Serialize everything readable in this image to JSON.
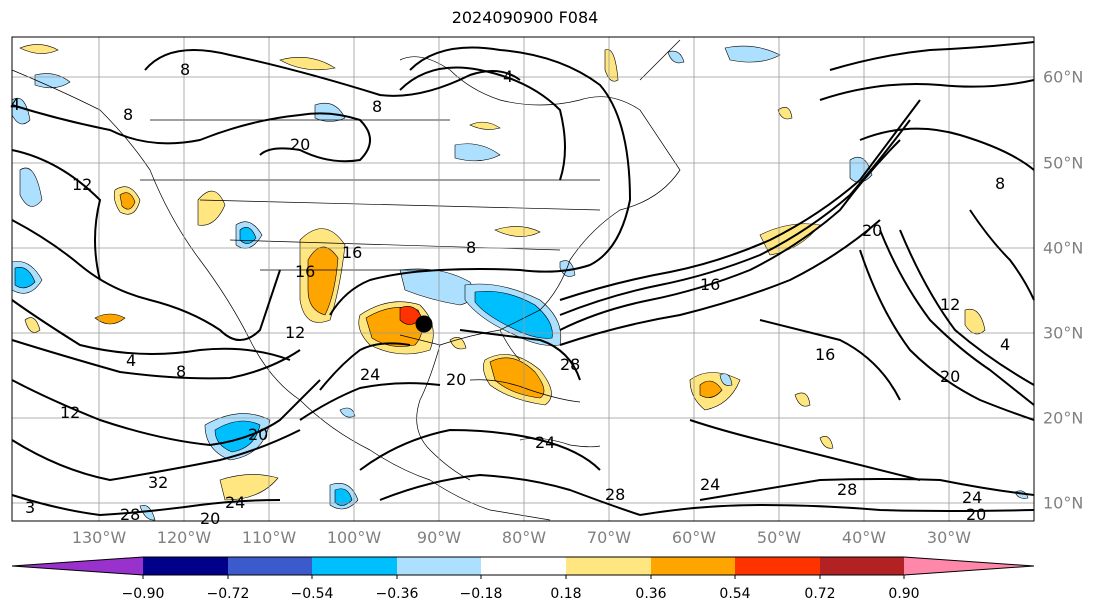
{
  "title": "2024090900 F084",
  "longitude_labels": [
    "130°W",
    "120°W",
    "110°W",
    "100°W",
    "90°W",
    "80°W",
    "70°W",
    "60°W",
    "50°W",
    "40°W",
    "30°W"
  ],
  "latitude_labels": [
    "60°N",
    "50°N",
    "40°N",
    "30°N",
    "20°N",
    "10°N"
  ],
  "contour_labels": [
    "8",
    "4",
    "8",
    "20",
    "12",
    "8",
    "16",
    "16",
    "12",
    "4",
    "8",
    "12",
    "8",
    "4",
    "16",
    "8",
    "20",
    "20",
    "16",
    "12",
    "4",
    "20",
    "24",
    "28",
    "28",
    "24",
    "32",
    "28",
    "20",
    "3",
    "24",
    "20",
    "24",
    "20",
    "28",
    "24"
  ],
  "colorbar": {
    "ticks": [
      "−0.90",
      "−0.72",
      "−0.54",
      "−0.36",
      "−0.18",
      "0.18",
      "0.36",
      "0.54",
      "0.72",
      "0.90"
    ],
    "colors": [
      "#9932cc",
      "#00008b",
      "#3b5bcc",
      "#00bfff",
      "#ade0ff",
      "#ffffff",
      "#ffe680",
      "#ffa500",
      "#ff3300",
      "#b22222",
      "#ff88aa"
    ]
  },
  "storm_marker": "black-dot"
}
